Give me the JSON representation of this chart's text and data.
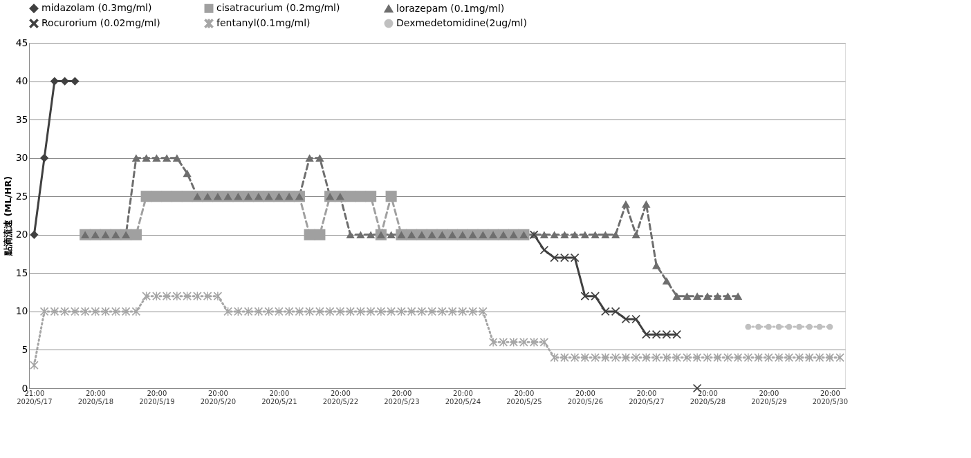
{
  "chart_data": {
    "type": "line",
    "ylabel": "點滴流速 (ML/HR)",
    "categories": [
      "21:00\n2020/5/17",
      null,
      null,
      null,
      null,
      null,
      "20:00\n2020/5/18",
      null,
      null,
      null,
      null,
      null,
      "20:00\n2020/5/19",
      null,
      null,
      null,
      null,
      null,
      "20:00\n2020/5/20",
      null,
      null,
      null,
      null,
      null,
      "20:00\n2020/5/21",
      null,
      null,
      null,
      null,
      null,
      "20:00\n2020/5/22",
      null,
      null,
      null,
      null,
      null,
      "20:00\n2020/5/23",
      null,
      null,
      null,
      null,
      null,
      "20:00\n2020/5/24",
      null,
      null,
      null,
      null,
      null,
      "20:00\n2020/5/25",
      null,
      null,
      null,
      null,
      null,
      "20:00\n2020/5/26",
      null,
      null,
      null,
      null,
      null,
      "20:00\n2020/5/27",
      null,
      null,
      null,
      null,
      null,
      "20:00\n2020/5/28",
      null,
      null,
      null,
      null,
      null,
      "20:00\n2020/5/29",
      null,
      null,
      null,
      null,
      null,
      "20:00\n2020/5/30",
      null
    ],
    "ylim": [
      0,
      45
    ],
    "yticks": [
      0,
      5,
      10,
      15,
      20,
      25,
      30,
      35,
      40,
      45
    ],
    "grid": "y",
    "legend": "top",
    "series": [
      {
        "name": "midazolam (0.3mg/ml)",
        "color": "#404040",
        "marker": "diamond",
        "line_style": "solid",
        "values": [
          20,
          30,
          40,
          40,
          40,
          null,
          null,
          null,
          null,
          null,
          null,
          null,
          null,
          null,
          null,
          null,
          null,
          null,
          null,
          null,
          null,
          null,
          null,
          null,
          null,
          null,
          null,
          null,
          null,
          null,
          null,
          null,
          null,
          null,
          null,
          null,
          null,
          null,
          null,
          null,
          null,
          null,
          null,
          null,
          null,
          null,
          null,
          null,
          null,
          null,
          null,
          null,
          null,
          null,
          null,
          null,
          null,
          null,
          null,
          null,
          null,
          null,
          null,
          null,
          null,
          null,
          null,
          null,
          null,
          null,
          null,
          null,
          null,
          null,
          null,
          null,
          null,
          null,
          null,
          null
        ]
      },
      {
        "name": "cisatracurium (0.2mg/ml)",
        "color": "#a0a0a0",
        "marker": "square",
        "line_style": "dashed",
        "values": [
          null,
          null,
          null,
          null,
          null,
          20,
          20,
          20,
          20,
          20,
          20,
          25,
          25,
          25,
          25,
          25,
          25,
          25,
          25,
          25,
          25,
          25,
          25,
          25,
          25,
          25,
          25,
          20,
          20,
          25,
          25,
          25,
          25,
          25,
          20,
          25,
          20,
          20,
          20,
          20,
          20,
          20,
          20,
          20,
          20,
          20,
          20,
          20,
          20,
          null,
          null,
          null,
          null,
          null,
          null,
          null,
          null,
          null,
          null,
          null,
          null,
          null,
          null,
          null,
          null,
          null,
          null,
          null,
          null,
          null,
          null,
          null,
          null,
          null,
          null,
          null,
          null,
          null,
          null,
          null
        ]
      },
      {
        "name": "lorazepam (0.1mg/ml)",
        "color": "#6e6e6e",
        "marker": "triangle",
        "line_style": "dashed",
        "values": [
          null,
          null,
          null,
          null,
          null,
          20,
          20,
          20,
          20,
          20,
          30,
          30,
          30,
          30,
          30,
          28,
          25,
          25,
          25,
          25,
          25,
          25,
          25,
          25,
          25,
          25,
          25,
          30,
          30,
          25,
          25,
          20,
          20,
          20,
          20,
          20,
          20,
          20,
          20,
          20,
          20,
          20,
          20,
          20,
          20,
          20,
          20,
          20,
          20,
          20,
          20,
          20,
          20,
          20,
          20,
          20,
          20,
          20,
          24,
          20,
          24,
          16,
          14,
          12,
          12,
          12,
          12,
          12,
          12,
          12,
          null,
          null,
          null,
          null,
          null,
          null,
          null,
          null,
          null,
          null
        ]
      },
      {
        "name": "Rocurorium (0.02mg/ml)",
        "color": "#404040",
        "marker": "cross",
        "line_style": "solid",
        "values": [
          null,
          null,
          null,
          null,
          null,
          null,
          null,
          null,
          null,
          null,
          null,
          null,
          null,
          null,
          null,
          null,
          null,
          null,
          null,
          null,
          null,
          null,
          null,
          null,
          null,
          null,
          null,
          null,
          null,
          null,
          null,
          null,
          null,
          null,
          null,
          null,
          null,
          null,
          null,
          null,
          null,
          null,
          null,
          null,
          null,
          null,
          null,
          null,
          null,
          20,
          18,
          17,
          17,
          17,
          12,
          12,
          10,
          10,
          9,
          9,
          7,
          7,
          7,
          7,
          null,
          0,
          null,
          null,
          null,
          null,
          null,
          null,
          null,
          null,
          null,
          null,
          null,
          null,
          null,
          null
        ]
      },
      {
        "name": "fentanyl(0.1mg/ml)",
        "color": "#a6a6a6",
        "marker": "star",
        "line_style": "dotted",
        "values": [
          3,
          10,
          10,
          10,
          10,
          10,
          10,
          10,
          10,
          10,
          10,
          12,
          12,
          12,
          12,
          12,
          12,
          12,
          12,
          10,
          10,
          10,
          10,
          10,
          10,
          10,
          10,
          10,
          10,
          10,
          10,
          10,
          10,
          10,
          10,
          10,
          10,
          10,
          10,
          10,
          10,
          10,
          10,
          10,
          10,
          6,
          6,
          6,
          6,
          6,
          6,
          4,
          4,
          4,
          4,
          4,
          4,
          4,
          4,
          4,
          4,
          4,
          4,
          4,
          4,
          4,
          4,
          4,
          4,
          4,
          4,
          4,
          4,
          4,
          4,
          4,
          4,
          4,
          4,
          4
        ]
      },
      {
        "name": "Dexmedetomidine(2ug/ml)",
        "color": "#c0c0c0",
        "marker": "circle",
        "line_style": "dotted",
        "values": [
          null,
          null,
          null,
          null,
          null,
          null,
          null,
          null,
          null,
          null,
          null,
          null,
          null,
          null,
          null,
          null,
          null,
          null,
          null,
          null,
          null,
          null,
          null,
          null,
          null,
          null,
          null,
          null,
          null,
          null,
          null,
          null,
          null,
          null,
          null,
          null,
          null,
          null,
          null,
          null,
          null,
          null,
          null,
          null,
          null,
          null,
          null,
          null,
          null,
          null,
          null,
          null,
          null,
          null,
          null,
          null,
          null,
          null,
          null,
          null,
          null,
          null,
          null,
          null,
          null,
          null,
          null,
          null,
          null,
          null,
          8,
          8,
          8,
          8,
          8,
          8,
          8,
          8,
          8,
          null
        ]
      }
    ]
  }
}
